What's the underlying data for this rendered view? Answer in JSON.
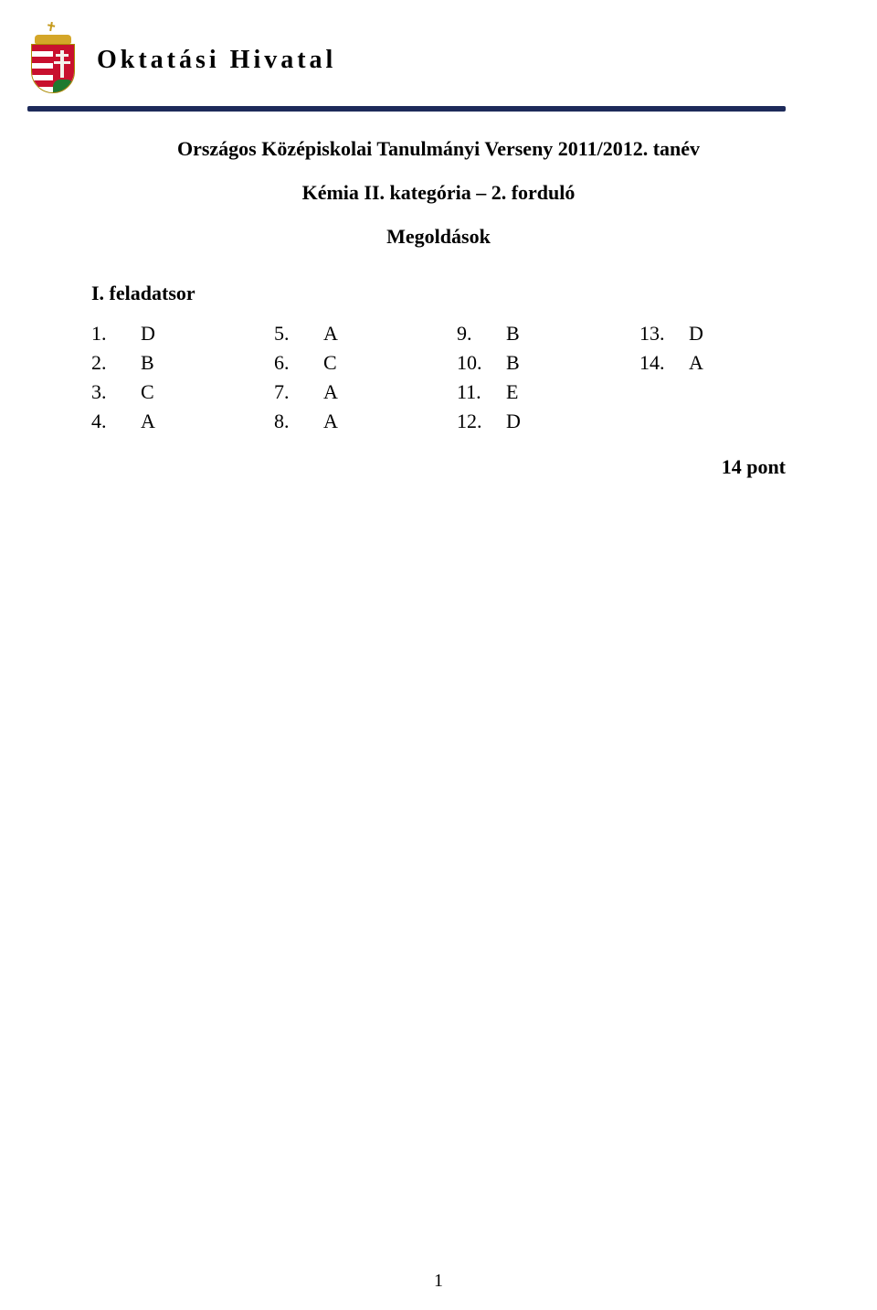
{
  "header": {
    "org_title": "Oktatási Hivatal"
  },
  "title": {
    "line1": "Országos Középiskolai Tanulmányi Verseny 2011/2012. tanév",
    "line2": "Kémia II. kategória – 2. forduló",
    "line3": "Megoldások"
  },
  "section1": {
    "heading": "I. feladatsor",
    "columns": [
      [
        {
          "n": "1.",
          "a": "D"
        },
        {
          "n": "2.",
          "a": "B"
        },
        {
          "n": "3.",
          "a": "C"
        },
        {
          "n": "4.",
          "a": "A"
        }
      ],
      [
        {
          "n": "5.",
          "a": "A"
        },
        {
          "n": "6.",
          "a": "C"
        },
        {
          "n": "7.",
          "a": "A"
        },
        {
          "n": "8.",
          "a": "A"
        }
      ],
      [
        {
          "n": "9.",
          "a": "B"
        },
        {
          "n": "10.",
          "a": "B"
        },
        {
          "n": "11.",
          "a": "E"
        },
        {
          "n": "12.",
          "a": "D"
        }
      ],
      [
        {
          "n": "13.",
          "a": "D"
        },
        {
          "n": "14.",
          "a": "A"
        }
      ]
    ],
    "points": "14 pont"
  },
  "page_number": "1"
}
